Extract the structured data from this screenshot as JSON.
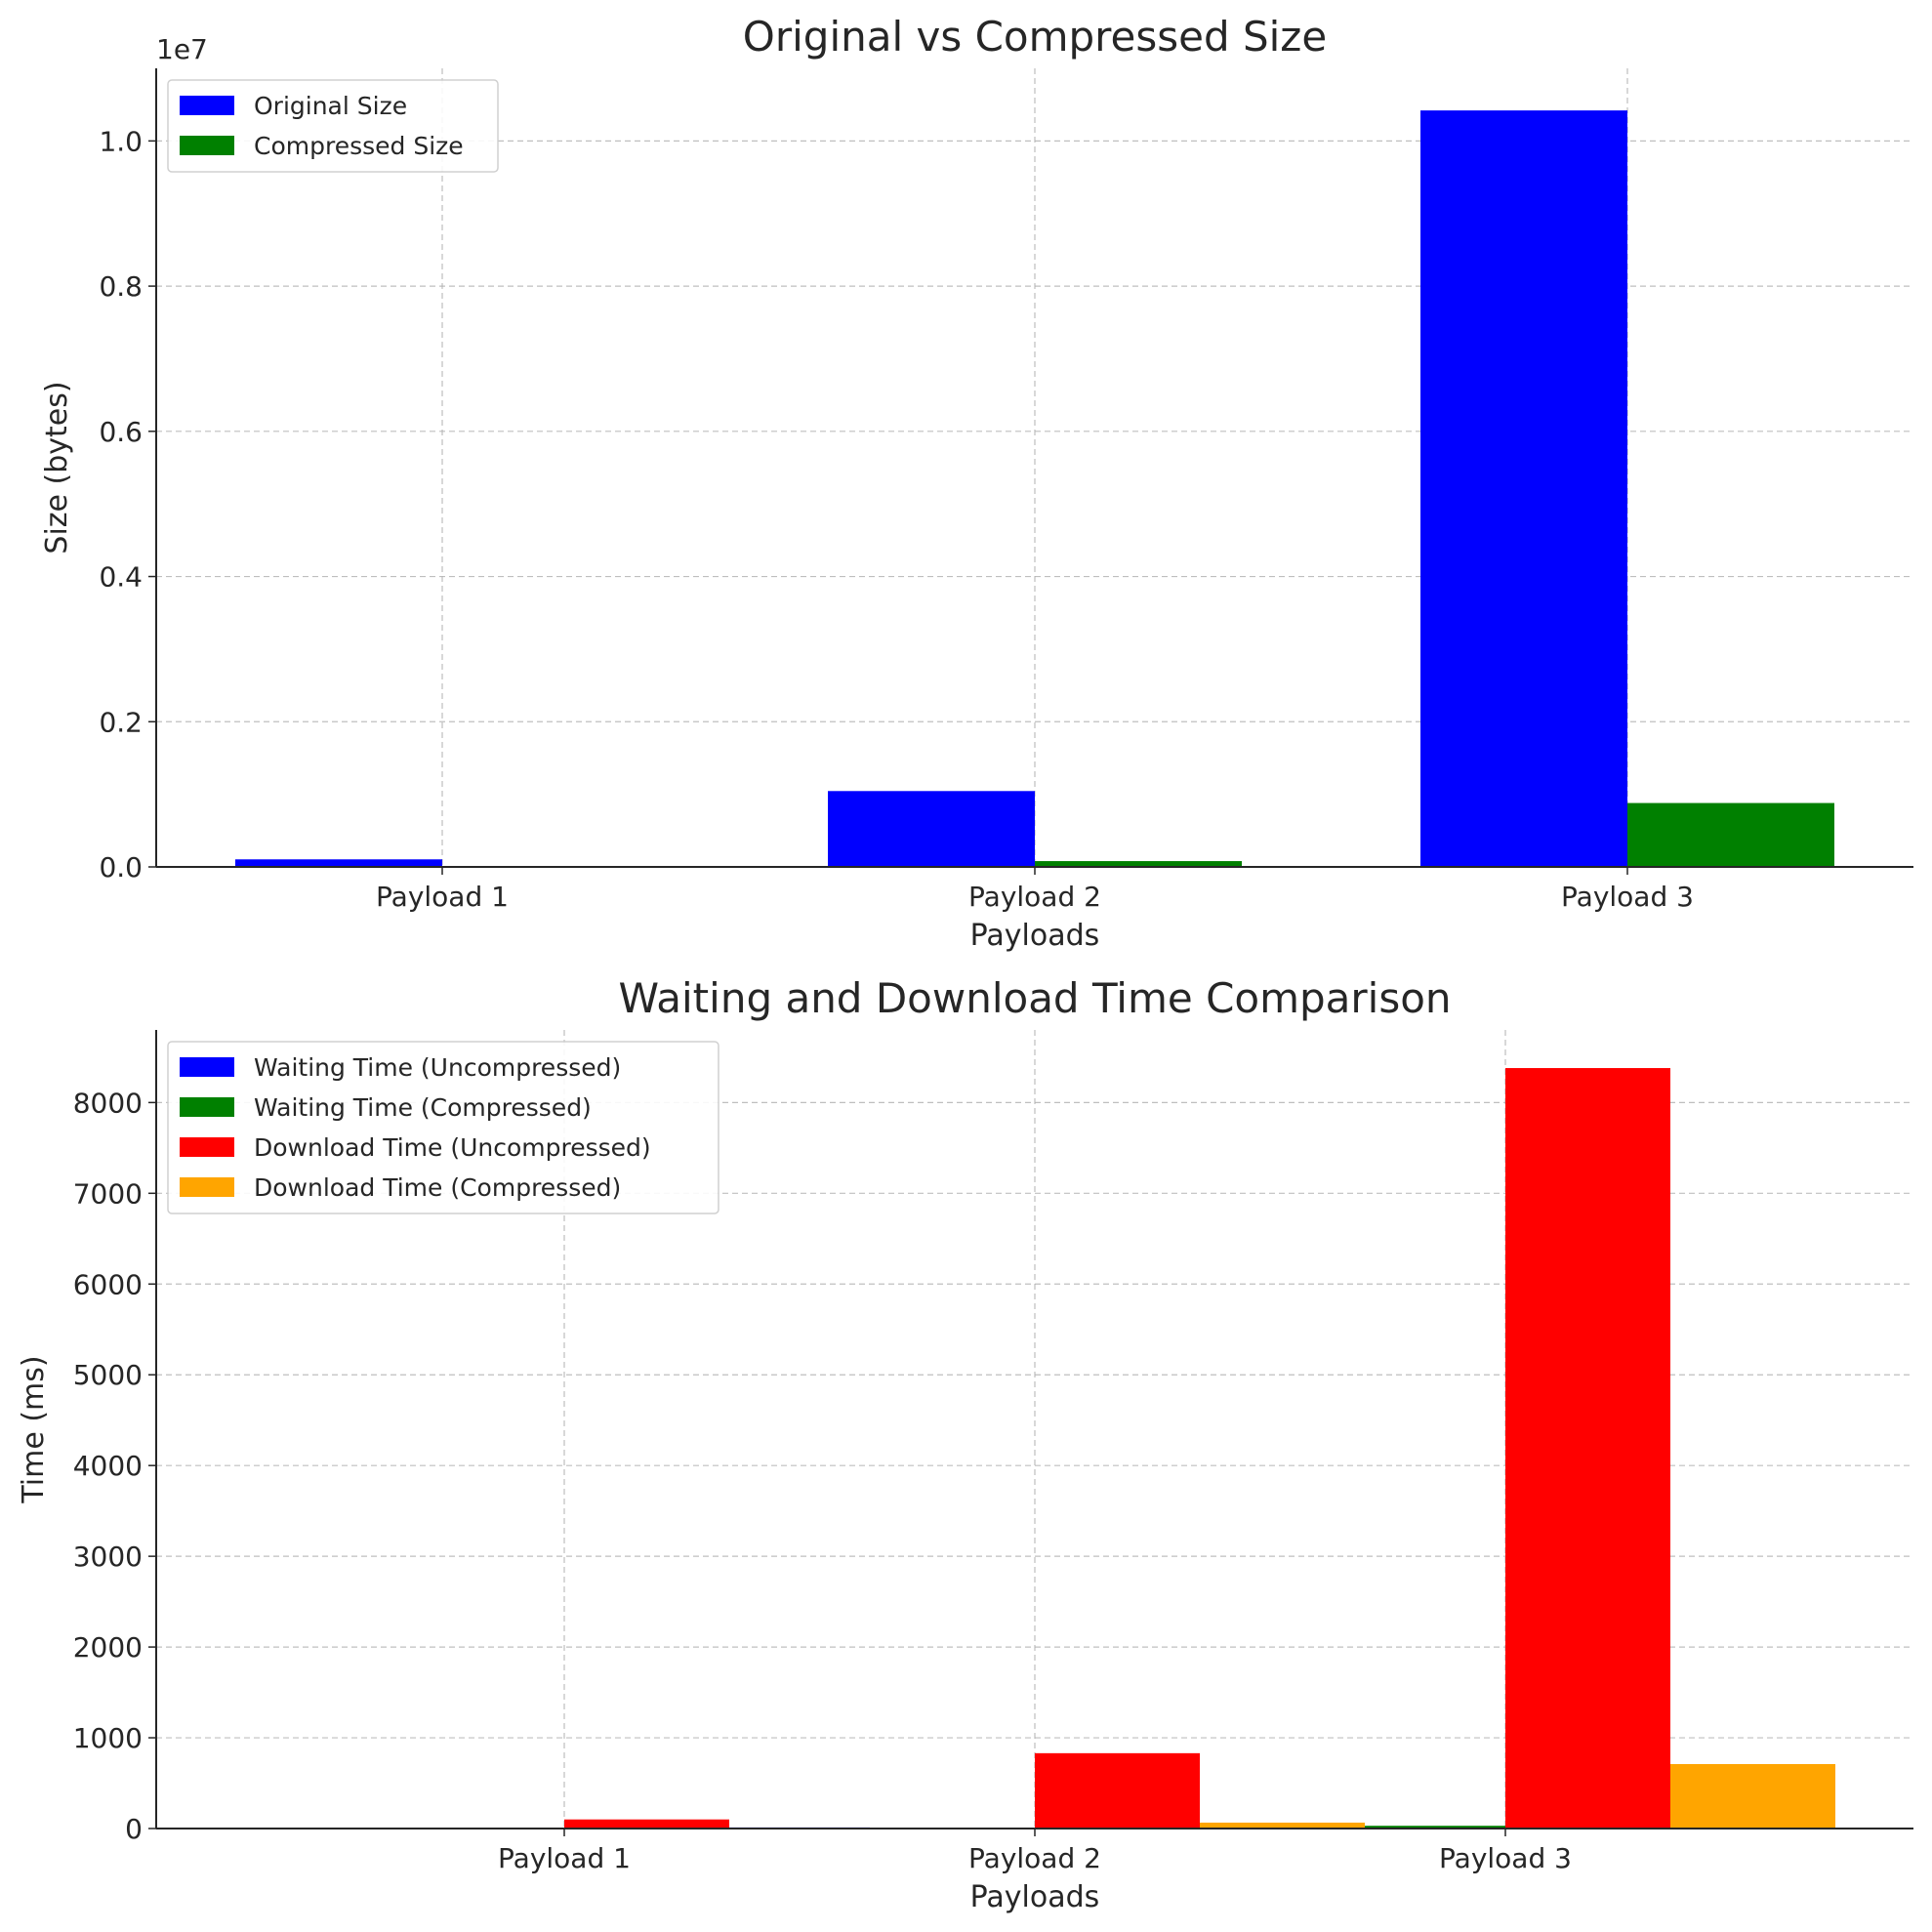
{
  "chart_data": [
    {
      "type": "bar",
      "title": "Original vs Compressed Size",
      "xlabel": "Payloads",
      "ylabel": "Size (bytes)",
      "y_offset_label": "1e7",
      "ylim": [
        0,
        11000000
      ],
      "yticks": [
        0,
        2000000,
        4000000,
        6000000,
        8000000,
        10000000
      ],
      "ytick_labels": [
        "0.0",
        "0.2",
        "0.4",
        "0.6",
        "0.8",
        "1.0"
      ],
      "categories": [
        "Payload 1",
        "Payload 2",
        "Payload 3"
      ],
      "grid": true,
      "legend_position": "top-left",
      "series": [
        {
          "name": "Original Size",
          "color": "#0000ff",
          "values": [
            104000,
            1045000,
            10420000
          ]
        },
        {
          "name": "Compressed Size",
          "color": "#008000",
          "values": [
            9000,
            80000,
            880000
          ]
        }
      ]
    },
    {
      "type": "bar",
      "title": "Waiting and Download Time Comparison",
      "xlabel": "Payloads",
      "ylabel": "Time (ms)",
      "ylim": [
        0,
        8800
      ],
      "yticks": [
        0,
        1000,
        2000,
        3000,
        4000,
        5000,
        6000,
        7000,
        8000
      ],
      "ytick_labels": [
        "0",
        "1000",
        "2000",
        "3000",
        "4000",
        "5000",
        "6000",
        "7000",
        "8000"
      ],
      "categories": [
        "Payload 1",
        "Payload 2",
        "Payload 3"
      ],
      "grid": true,
      "legend_position": "top-left",
      "series": [
        {
          "name": "Waiting Time (Uncompressed)",
          "color": "#0000ff",
          "values": [
            10,
            12,
            15
          ]
        },
        {
          "name": "Waiting Time (Compressed)",
          "color": "#008000",
          "values": [
            5,
            8,
            30
          ]
        },
        {
          "name": "Download Time (Uncompressed)",
          "color": "#ff0000",
          "values": [
            100,
            830,
            8380
          ]
        },
        {
          "name": "Download Time (Compressed)",
          "color": "#ffa500",
          "values": [
            8,
            65,
            710
          ]
        }
      ]
    }
  ]
}
